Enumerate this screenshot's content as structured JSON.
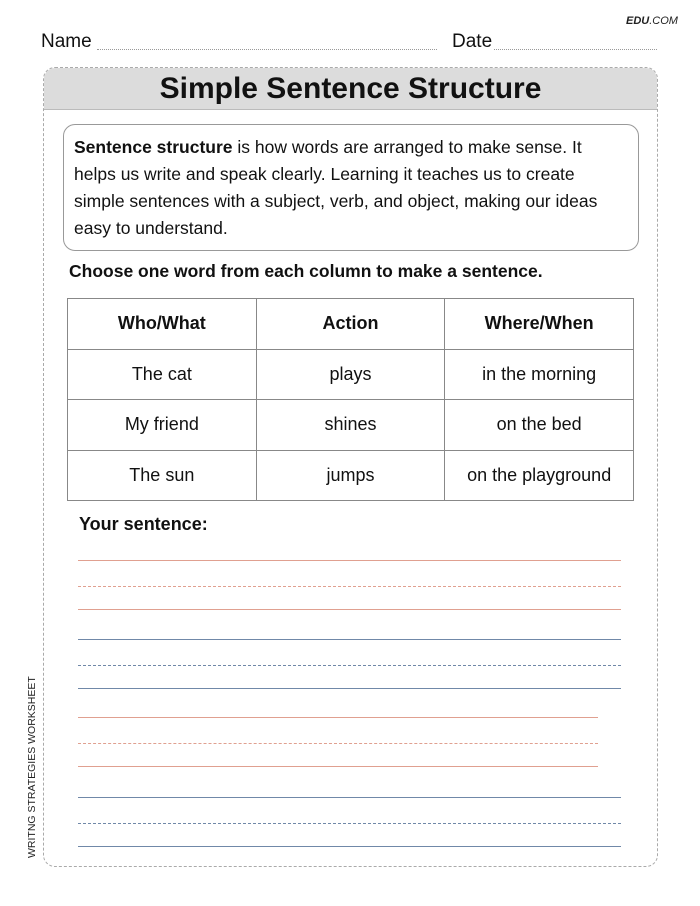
{
  "logo": {
    "bold": "EDU",
    "rest": ".COM"
  },
  "header": {
    "name_label": "Name",
    "date_label": "Date"
  },
  "side_label": "WRITNG STRATEGIES WORKSHEET",
  "title": "Simple Sentence Structure",
  "intro": {
    "term": "Sentence structure",
    "text": " is how words are arranged to make sense. It helps us write and speak clearly. Learning it teaches us to create simple sentences with a subject, verb, and object, making our ideas easy to understand."
  },
  "instruction": "Choose one word from each column to make a sentence.",
  "table": {
    "headers": [
      "Who/What",
      "Action",
      "Where/When"
    ],
    "rows": [
      [
        "The cat",
        "plays",
        "in the morning"
      ],
      [
        "My friend",
        "shines",
        "on the bed"
      ],
      [
        "The sun",
        "jumps",
        "on the playground"
      ]
    ]
  },
  "answer_label": "Your sentence:",
  "colors": {
    "red_line": "#e0a090",
    "blue_line": "#7088a8"
  }
}
